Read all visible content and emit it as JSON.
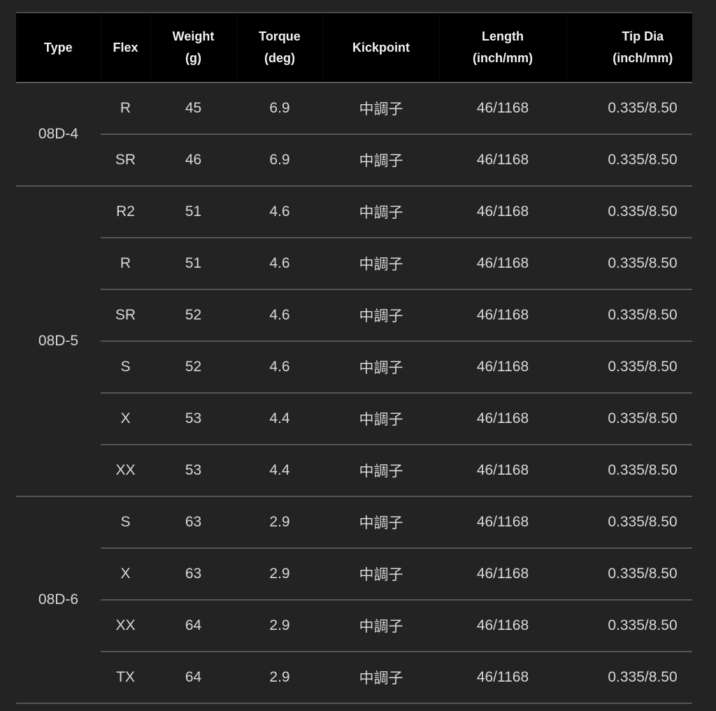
{
  "headers": {
    "type": "Type",
    "flex": "Flex",
    "weight": [
      "Weight",
      "(g)"
    ],
    "torque": [
      "Torque",
      "(deg)"
    ],
    "kickpoint": "Kickpoint",
    "length": [
      "Length",
      "(inch/mm)"
    ],
    "tip": [
      "Tip Dia",
      "(inch/mm)"
    ]
  },
  "groups": [
    {
      "type": "08D-4",
      "rows": [
        {
          "flex": "R",
          "weight": "45",
          "torque": "6.9",
          "kickpoint": "中調子",
          "length": "46/1168",
          "tip": "0.335/8.50"
        },
        {
          "flex": "SR",
          "weight": "46",
          "torque": "6.9",
          "kickpoint": "中調子",
          "length": "46/1168",
          "tip": "0.335/8.50"
        }
      ]
    },
    {
      "type": "08D-5",
      "rows": [
        {
          "flex": "R2",
          "weight": "51",
          "torque": "4.6",
          "kickpoint": "中調子",
          "length": "46/1168",
          "tip": "0.335/8.50"
        },
        {
          "flex": "R",
          "weight": "51",
          "torque": "4.6",
          "kickpoint": "中調子",
          "length": "46/1168",
          "tip": "0.335/8.50"
        },
        {
          "flex": "SR",
          "weight": "52",
          "torque": "4.6",
          "kickpoint": "中調子",
          "length": "46/1168",
          "tip": "0.335/8.50"
        },
        {
          "flex": "S",
          "weight": "52",
          "torque": "4.6",
          "kickpoint": "中調子",
          "length": "46/1168",
          "tip": "0.335/8.50"
        },
        {
          "flex": "X",
          "weight": "53",
          "torque": "4.4",
          "kickpoint": "中調子",
          "length": "46/1168",
          "tip": "0.335/8.50"
        },
        {
          "flex": "XX",
          "weight": "53",
          "torque": "4.4",
          "kickpoint": "中調子",
          "length": "46/1168",
          "tip": "0.335/8.50"
        }
      ]
    },
    {
      "type": "08D-6",
      "rows": [
        {
          "flex": "S",
          "weight": "63",
          "torque": "2.9",
          "kickpoint": "中調子",
          "length": "46/1168",
          "tip": "0.335/8.50"
        },
        {
          "flex": "X",
          "weight": "63",
          "torque": "2.9",
          "kickpoint": "中調子",
          "length": "46/1168",
          "tip": "0.335/8.50"
        },
        {
          "flex": "XX",
          "weight": "64",
          "torque": "2.9",
          "kickpoint": "中調子",
          "length": "46/1168",
          "tip": "0.335/8.50"
        },
        {
          "flex": "TX",
          "weight": "64",
          "torque": "2.9",
          "kickpoint": "中調子",
          "length": "46/1168",
          "tip": "0.335/8.50"
        }
      ]
    }
  ]
}
